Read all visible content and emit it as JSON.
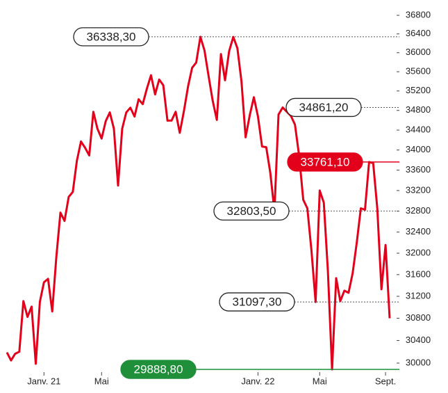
{
  "chart_data": {
    "type": "line",
    "log_scale": true,
    "color": "#e2001a",
    "values": [
      30188,
      30047,
      30165,
      30200,
      31112,
      30825,
      31012,
      29988,
      31100,
      31458,
      31522,
      30925,
      31927,
      32773,
      32613,
      33076,
      33172,
      33787,
      34171,
      34043,
      33893,
      34772,
      34428,
      34229,
      34579,
      34759,
      34428,
      33297,
      34428,
      34759,
      34857,
      34676,
      35029,
      34929,
      35244,
      35526,
      35129,
      35437,
      35319,
      34593,
      34593,
      34772,
      34345,
      34786,
      35289,
      35683,
      35793,
      36338.3,
      36048,
      35511,
      35000,
      34607,
      35972,
      35422,
      36032,
      36336,
      36096,
      35393,
      34255,
      34703,
      35071,
      34676,
      34071,
      34057,
      33545,
      32803.5,
      34717,
      34861.2,
      34772,
      34690,
      34510,
      33880,
      33021,
      32855,
      32053,
      31097.3,
      33200,
      32966,
      31662,
      29888.8,
      31535,
      31112,
      31304,
      31265,
      31625,
      32195,
      32855,
      32828,
      33761.1,
      33740,
      32855,
      31329,
      32154,
      30800
    ],
    "xlim": [
      0,
      93
    ],
    "xticks": [
      {
        "value": 9,
        "label": "Janv. 21"
      },
      {
        "value": 23,
        "label": "Mai"
      },
      {
        "value": 61,
        "label": "Janv. 22"
      },
      {
        "value": 76,
        "label": "Mai"
      },
      {
        "value": 92,
        "label": "Sept."
      }
    ],
    "ylim": [
      29780,
      36800
    ],
    "yticks": [
      30000,
      30400,
      30800,
      31200,
      31600,
      32000,
      32400,
      32800,
      33200,
      33600,
      34000,
      34400,
      34800,
      35200,
      35600,
      36000,
      36400,
      36800
    ],
    "annotations": [
      {
        "label": "36338,30",
        "value": 36338.3
      },
      {
        "label": "34861,20",
        "value": 34861.2
      },
      {
        "label": "33761,10",
        "value": 33761.1,
        "color": "#e2001a"
      },
      {
        "label": "32803,50",
        "value": 32803.5
      },
      {
        "label": "31097,30",
        "value": 31097.3
      },
      {
        "label": "29888,80",
        "value": 29888.8,
        "color": "#1f8f3a"
      }
    ]
  }
}
